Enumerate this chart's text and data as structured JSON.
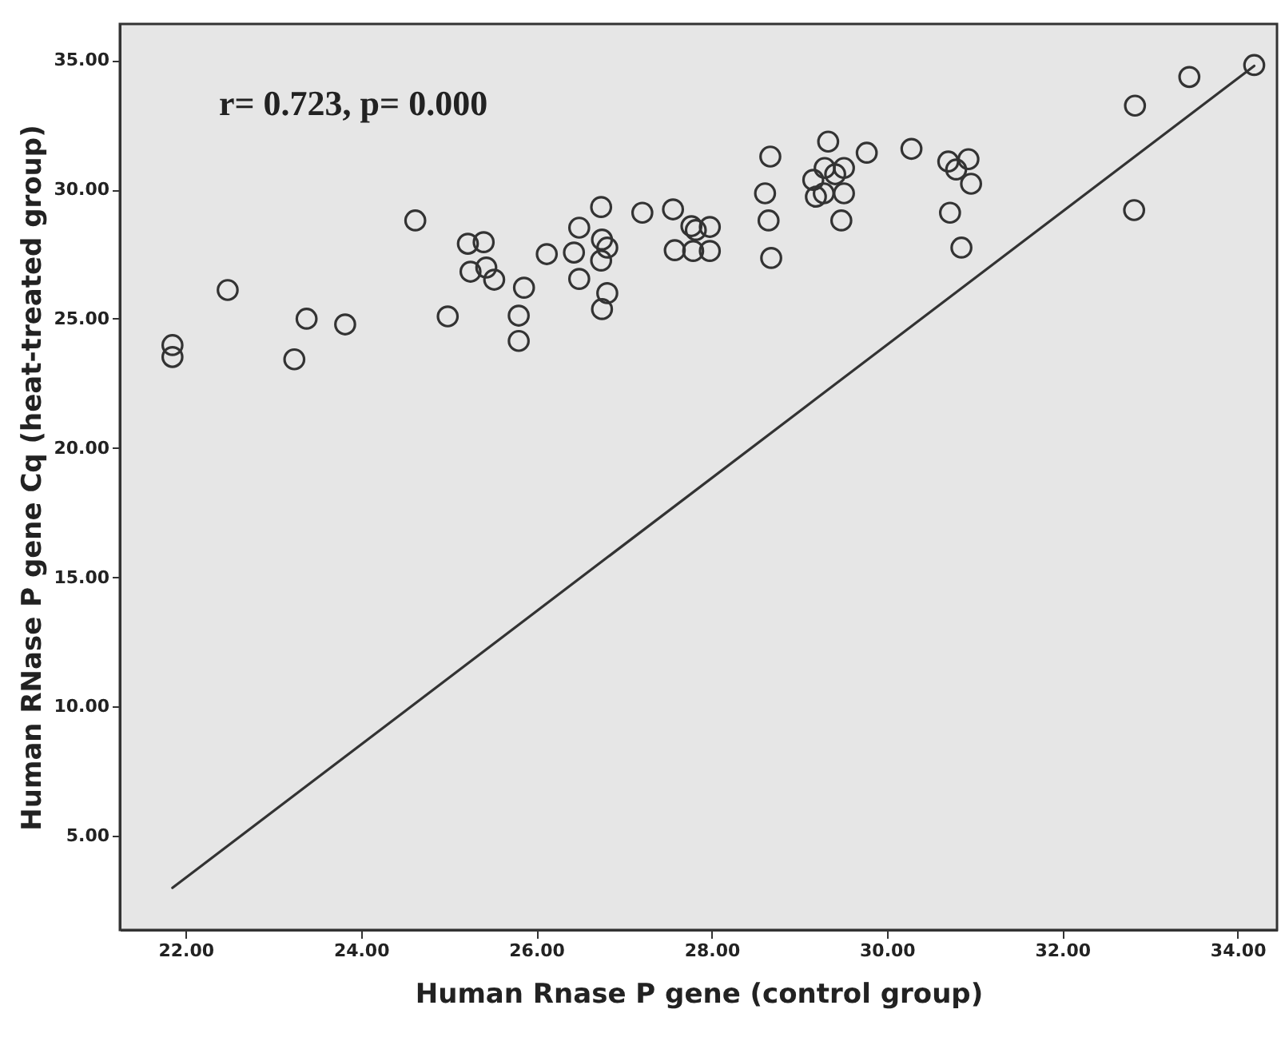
{
  "chart_data": {
    "type": "scatter",
    "xlabel": "Human Rnase P gene (control group)",
    "ylabel": "Human RNase P gene Cq (heat-treated group)",
    "annotations": [
      "r= 0.723, p= 0.000"
    ],
    "xlim": [
      21.25,
      34.45
    ],
    "ylim": [
      1.36,
      36.4
    ],
    "xticks": [
      {
        "value": 22,
        "label": "22.00"
      },
      {
        "value": 24,
        "label": "24.00"
      },
      {
        "value": 26,
        "label": "26.00"
      },
      {
        "value": 28,
        "label": "28.00"
      },
      {
        "value": 30,
        "label": "30.00"
      },
      {
        "value": 32,
        "label": "32.00"
      },
      {
        "value": 34,
        "label": "34.00"
      }
    ],
    "yticks": [
      {
        "value": 5,
        "label": "5.00"
      },
      {
        "value": 10,
        "label": "10.00"
      },
      {
        "value": 15,
        "label": "15.00"
      },
      {
        "value": 20,
        "label": "20.00"
      },
      {
        "value": 25,
        "label": "25.00"
      },
      {
        "value": 30,
        "label": "30.00"
      },
      {
        "value": 35,
        "label": "35.00"
      }
    ],
    "grid": false,
    "series": [
      {
        "color": "#333333",
        "marker": "circle",
        "x": [
          21.85,
          21.85,
          22.48,
          23.38,
          23.24,
          23.82,
          24.62,
          24.99,
          25.22,
          25.4,
          25.25,
          25.43,
          25.52,
          25.86,
          25.8,
          25.8,
          26.12,
          26.43,
          26.49,
          26.49,
          26.74,
          26.75,
          26.74,
          26.81,
          26.81,
          26.75,
          27.21,
          27.56,
          27.58,
          27.77,
          27.82,
          27.79,
          27.98,
          27.98,
          28.61,
          28.65,
          28.67,
          28.68,
          29.33,
          29.16,
          29.29,
          29.41,
          29.19,
          29.28,
          29.51,
          29.51,
          29.48,
          29.77,
          30.28,
          30.7,
          30.79,
          30.93,
          30.96,
          30.72,
          30.85,
          32.83,
          32.82,
          33.45,
          34.19
        ],
        "values": [
          23.98,
          23.52,
          26.11,
          25.0,
          23.43,
          24.78,
          28.8,
          25.09,
          27.9,
          27.96,
          26.82,
          26.98,
          26.51,
          26.2,
          25.12,
          24.14,
          27.5,
          27.56,
          28.52,
          26.54,
          29.32,
          28.06,
          27.25,
          27.75,
          25.99,
          25.37,
          29.1,
          29.23,
          27.65,
          28.58,
          28.43,
          27.62,
          28.55,
          27.62,
          29.85,
          28.8,
          31.27,
          27.35,
          31.85,
          30.37,
          30.83,
          30.59,
          29.72,
          29.85,
          30.83,
          29.85,
          28.8,
          31.42,
          31.57,
          31.08,
          30.77,
          31.17,
          30.22,
          29.1,
          27.75,
          33.24,
          29.2,
          34.35,
          34.81
        ]
      },
      {
        "type": "line",
        "color": "#333333",
        "line_style": "solid",
        "x": [
          21.85,
          34.19
        ],
        "values": [
          2.99,
          34.78
        ]
      }
    ]
  }
}
